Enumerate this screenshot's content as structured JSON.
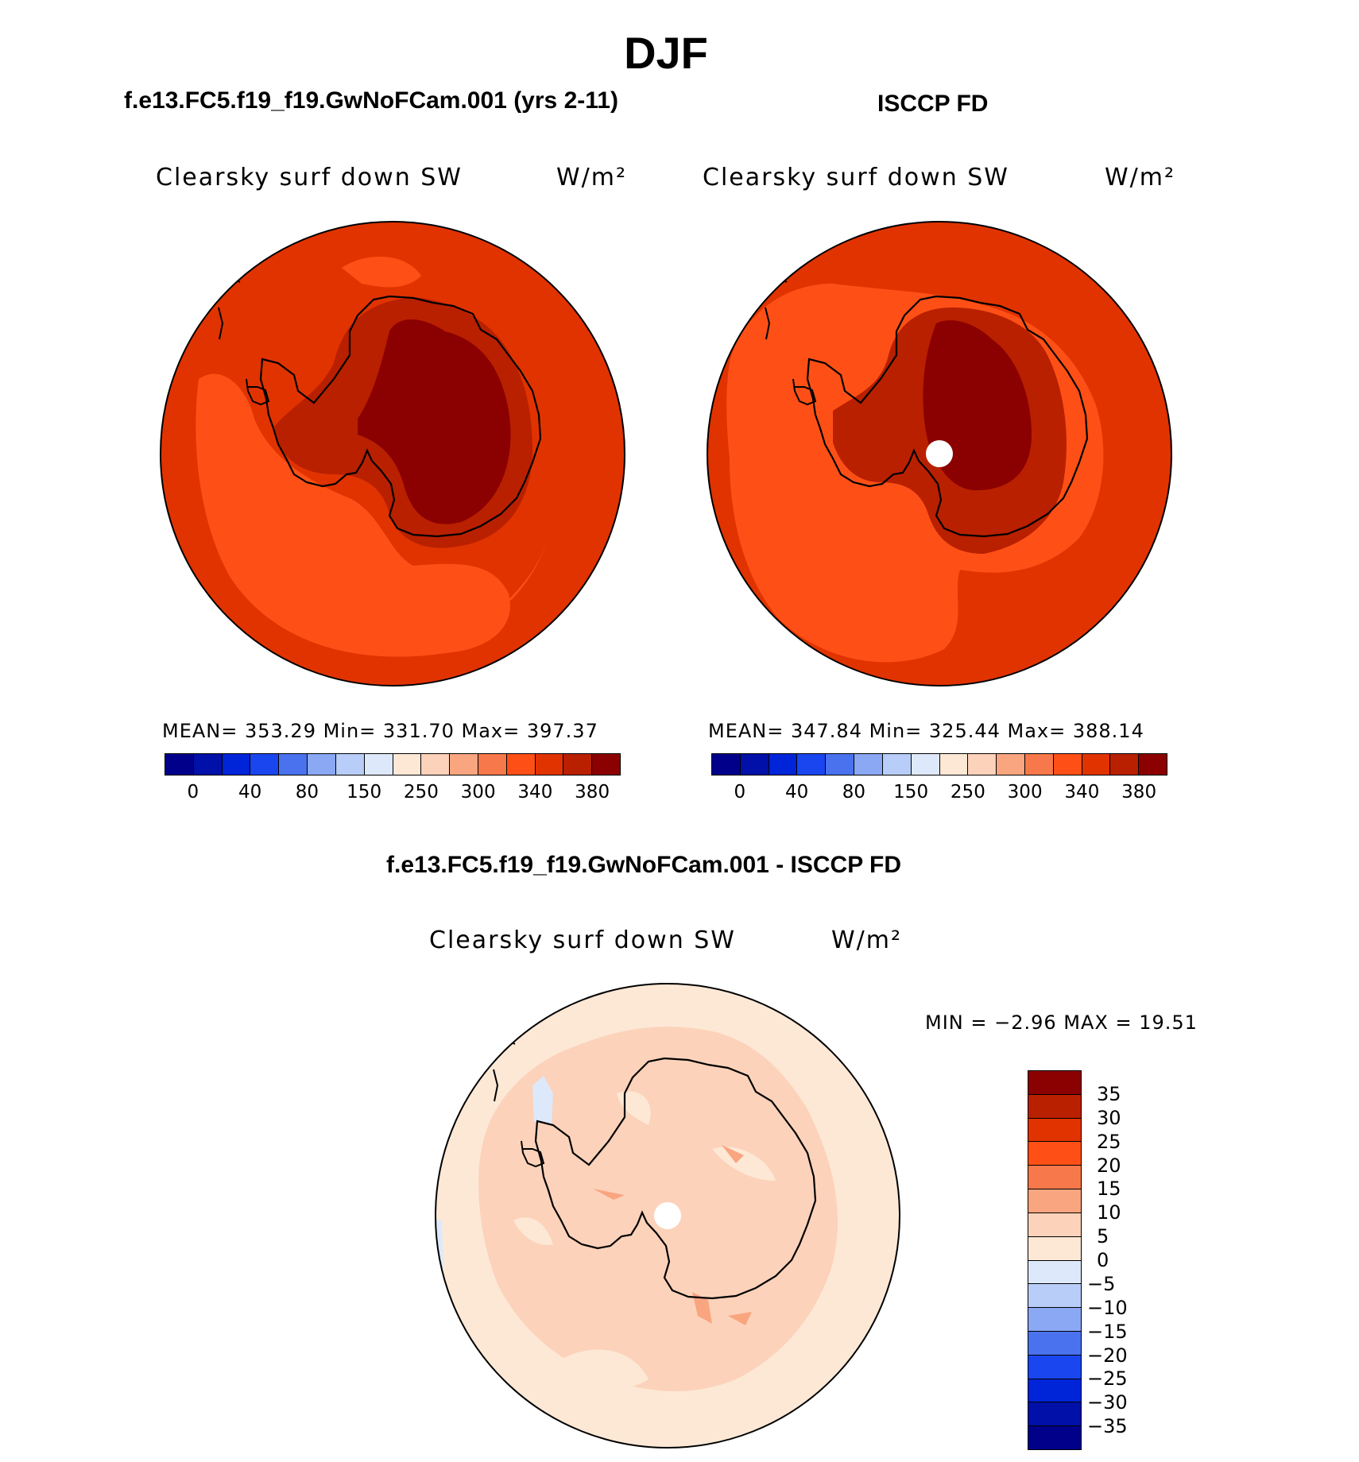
{
  "season": "DJF",
  "panels": [
    {
      "case_title": "f.e13.FC5.f19_f19.GwNoFCam.001 (yrs 2-11)",
      "variable": "Clearsky surf down SW",
      "units": "W/m²",
      "stats": "MEAN= 353.29   Min= 331.70   Max= 397.37"
    },
    {
      "case_title": "ISCCP FD",
      "variable": "Clearsky surf down SW",
      "units": "W/m²",
      "stats": "MEAN= 347.84   Min= 325.44   Max= 388.14"
    }
  ],
  "colorbar_top": {
    "colors": [
      "#00008b",
      "#0010a8",
      "#0024d8",
      "#1a46f0",
      "#4a72ee",
      "#8aa8f4",
      "#b8cdf8",
      "#dde9fa",
      "#fde8d6",
      "#fcd2ba",
      "#f9a57f",
      "#f7784a",
      "#fe5016",
      "#e13300",
      "#b92000",
      "#8b0000"
    ],
    "tick_labels": [
      "0",
      "40",
      "80",
      "150",
      "250",
      "300",
      "340",
      "380"
    ]
  },
  "difference_panel": {
    "case_title": "f.e13.FC5.f19_f19.GwNoFCam.001 - ISCCP FD",
    "variable": "Clearsky surf down SW",
    "units": "W/m²",
    "minmax": "MIN =   −2.96 MAX =   19.51"
  },
  "colorbar_diff": {
    "colors": [
      "#8b0000",
      "#b92000",
      "#e13300",
      "#fe5016",
      "#f7784a",
      "#f9a57f",
      "#fcd2ba",
      "#fde8d6",
      "#dde9fa",
      "#b8cdf8",
      "#8aa8f4",
      "#4a72ee",
      "#1a46f0",
      "#0024d8",
      "#0010a8",
      "#00008b"
    ],
    "tick_labels": [
      "35",
      "30",
      "25",
      "20",
      "15",
      "10",
      "5",
      "0",
      "−5",
      "−10",
      "−15",
      "−20",
      "−25",
      "−30",
      "−35"
    ]
  },
  "map_colors": {
    "field_380": "#8b0000",
    "field_360": "#b92000",
    "field_340": "#e13300",
    "field_320": "#fe5016",
    "field_300": "#f7784a",
    "diff_0_5": "#fde8d6",
    "diff_5_10": "#fcd2ba",
    "diff_10_15": "#f9a57f",
    "diff_neg": "#dde9fa",
    "missing": "#ffffff",
    "coastline": "#000000"
  }
}
